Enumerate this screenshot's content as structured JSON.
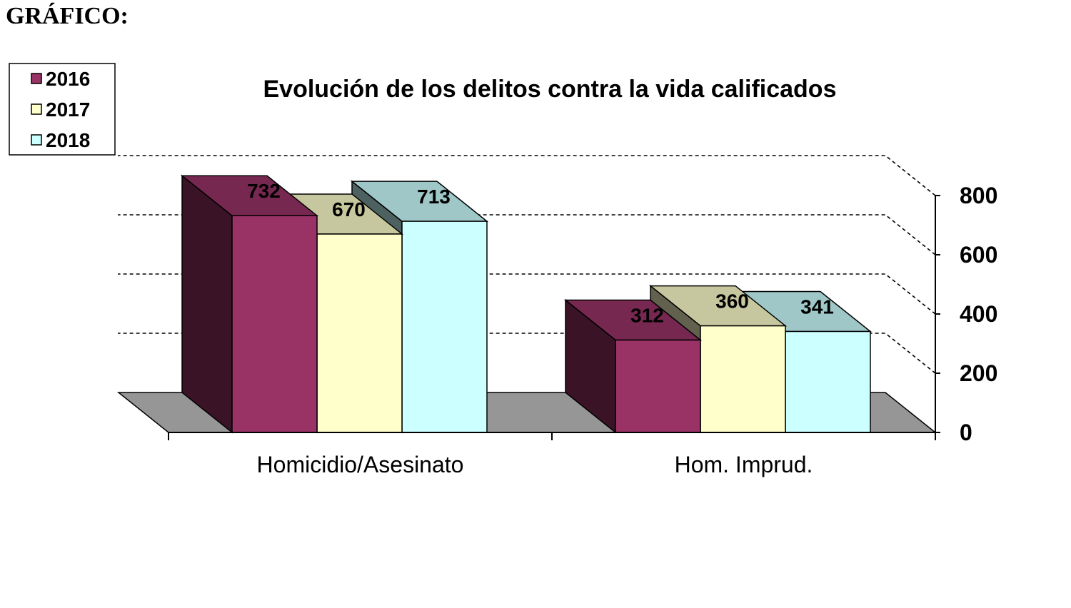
{
  "page": {
    "heading": "GRÁFICO:"
  },
  "chart_data": {
    "type": "bar",
    "style": "3d-clustered",
    "title": "Evolución de los delitos contra la vida calificados",
    "categories": [
      "Homicidio/Asesinato",
      "Hom. Imprud."
    ],
    "series": [
      {
        "name": "2016",
        "values": [
          732,
          312
        ],
        "color": "#993366",
        "label_color": "#000000"
      },
      {
        "name": "2017",
        "values": [
          670,
          360
        ],
        "color": "#ffffcc",
        "label_color": "#000000"
      },
      {
        "name": "2018",
        "values": [
          713,
          341
        ],
        "color": "#ccffff",
        "label_color": "#000000"
      }
    ],
    "yticks": [
      "0",
      "200",
      "400",
      "600",
      "800"
    ],
    "ylim": [
      0,
      800
    ],
    "xlabel": "",
    "ylabel": "",
    "grid": true,
    "legend_position": "top-left",
    "floor_color": "#969696"
  }
}
